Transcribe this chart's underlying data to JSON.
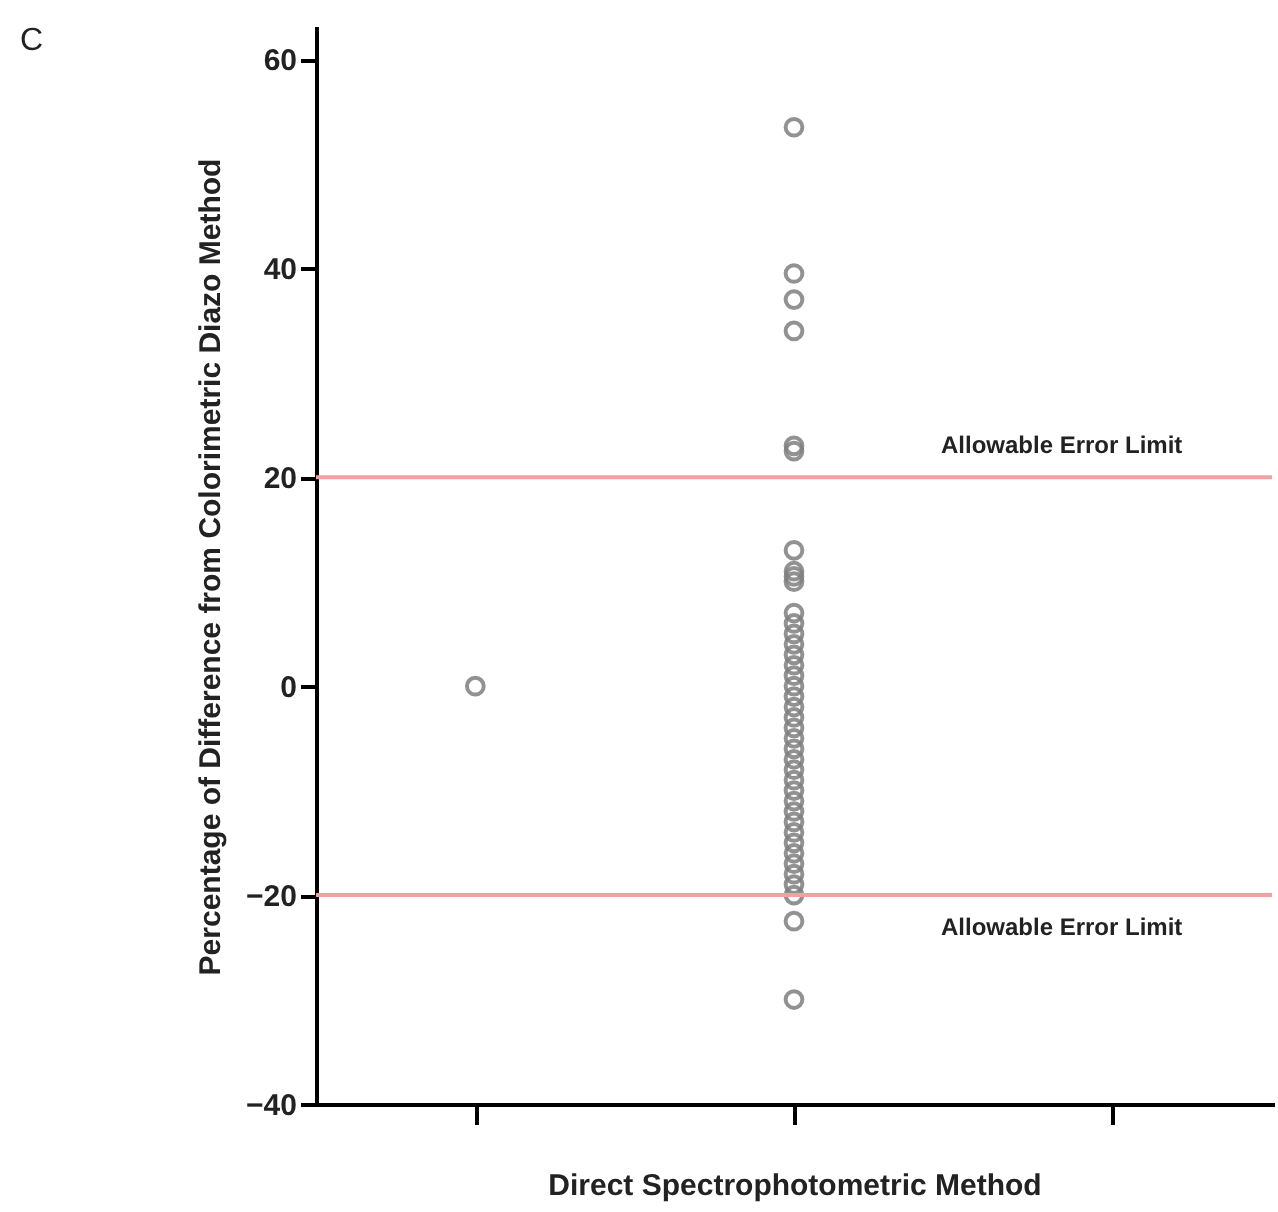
{
  "chart_data": {
    "type": "scatter",
    "title": "C",
    "xlabel": "Direct Spectrophotometric Method",
    "ylabel": "Percentage of Difference from Colorimetric Diazo Method",
    "categories": [
      null,
      null,
      null
    ],
    "ylim": [
      -40,
      63
    ],
    "yticks": [
      -40,
      -20,
      0,
      20,
      40,
      60
    ],
    "series": [
      {
        "color": "#808080",
        "values": [
          0,
          null,
          null
        ]
      },
      {
        "color": "#808080",
        "values": [
          null,
          53.5,
          null
        ]
      },
      {
        "color": "#808080",
        "values": [
          null,
          39.5,
          null
        ]
      },
      {
        "color": "#808080",
        "values": [
          null,
          37,
          null
        ]
      },
      {
        "color": "#808080",
        "values": [
          null,
          34,
          null
        ]
      },
      {
        "color": "#808080",
        "values": [
          null,
          23,
          null
        ]
      },
      {
        "color": "#808080",
        "values": [
          null,
          22.5,
          null
        ]
      },
      {
        "color": "#808080",
        "values": [
          null,
          13,
          null
        ]
      },
      {
        "color": "#808080",
        "values": [
          null,
          11,
          null
        ]
      },
      {
        "color": "#808080",
        "values": [
          null,
          10.5,
          null
        ]
      },
      {
        "color": "#808080",
        "values": [
          null,
          10,
          null
        ]
      },
      {
        "color": "#808080",
        "values": [
          null,
          7,
          null
        ]
      },
      {
        "color": "#808080",
        "values": [
          null,
          6,
          null
        ]
      },
      {
        "color": "#808080",
        "values": [
          null,
          5,
          null
        ]
      },
      {
        "color": "#808080",
        "values": [
          null,
          4,
          null
        ]
      },
      {
        "color": "#808080",
        "values": [
          null,
          3,
          null
        ]
      },
      {
        "color": "#808080",
        "values": [
          null,
          2,
          null
        ]
      },
      {
        "color": "#808080",
        "values": [
          null,
          1,
          null
        ]
      },
      {
        "color": "#808080",
        "values": [
          null,
          0,
          null
        ]
      },
      {
        "color": "#808080",
        "values": [
          null,
          -1,
          null
        ]
      },
      {
        "color": "#808080",
        "values": [
          null,
          -2,
          null
        ]
      },
      {
        "color": "#808080",
        "values": [
          null,
          -3,
          null
        ]
      },
      {
        "color": "#808080",
        "values": [
          null,
          -4,
          null
        ]
      },
      {
        "color": "#808080",
        "values": [
          null,
          -5,
          null
        ]
      },
      {
        "color": "#808080",
        "values": [
          null,
          -6,
          null
        ]
      },
      {
        "color": "#808080",
        "values": [
          null,
          -7,
          null
        ]
      },
      {
        "color": "#808080",
        "values": [
          null,
          -8,
          null
        ]
      },
      {
        "color": "#808080",
        "values": [
          null,
          -9,
          null
        ]
      },
      {
        "color": "#808080",
        "values": [
          null,
          -10,
          null
        ]
      },
      {
        "color": "#808080",
        "values": [
          null,
          -11,
          null
        ]
      },
      {
        "color": "#808080",
        "values": [
          null,
          -12,
          null
        ]
      },
      {
        "color": "#808080",
        "values": [
          null,
          -13,
          null
        ]
      },
      {
        "color": "#808080",
        "values": [
          null,
          -14,
          null
        ]
      },
      {
        "color": "#808080",
        "values": [
          null,
          -15,
          null
        ]
      },
      {
        "color": "#808080",
        "values": [
          null,
          -16,
          null
        ]
      },
      {
        "color": "#808080",
        "values": [
          null,
          -17,
          null
        ]
      },
      {
        "color": "#808080",
        "values": [
          null,
          -18,
          null
        ]
      },
      {
        "color": "#808080",
        "values": [
          null,
          -19,
          null
        ]
      },
      {
        "color": "#808080",
        "values": [
          null,
          -20,
          null
        ]
      },
      {
        "color": "#808080",
        "values": [
          null,
          -22.5,
          null
        ]
      },
      {
        "color": "#808080",
        "values": [
          null,
          -30,
          null
        ]
      }
    ],
    "ref_lines": [
      {
        "axis": "y",
        "value": 20,
        "label": "Allowable Error Limit",
        "color": "#f2a0a0"
      },
      {
        "axis": "y",
        "value": -20,
        "label": "Allowable Error Limit",
        "color": "#f2a0a0"
      }
    ],
    "marker": "circle",
    "grid": false
  }
}
